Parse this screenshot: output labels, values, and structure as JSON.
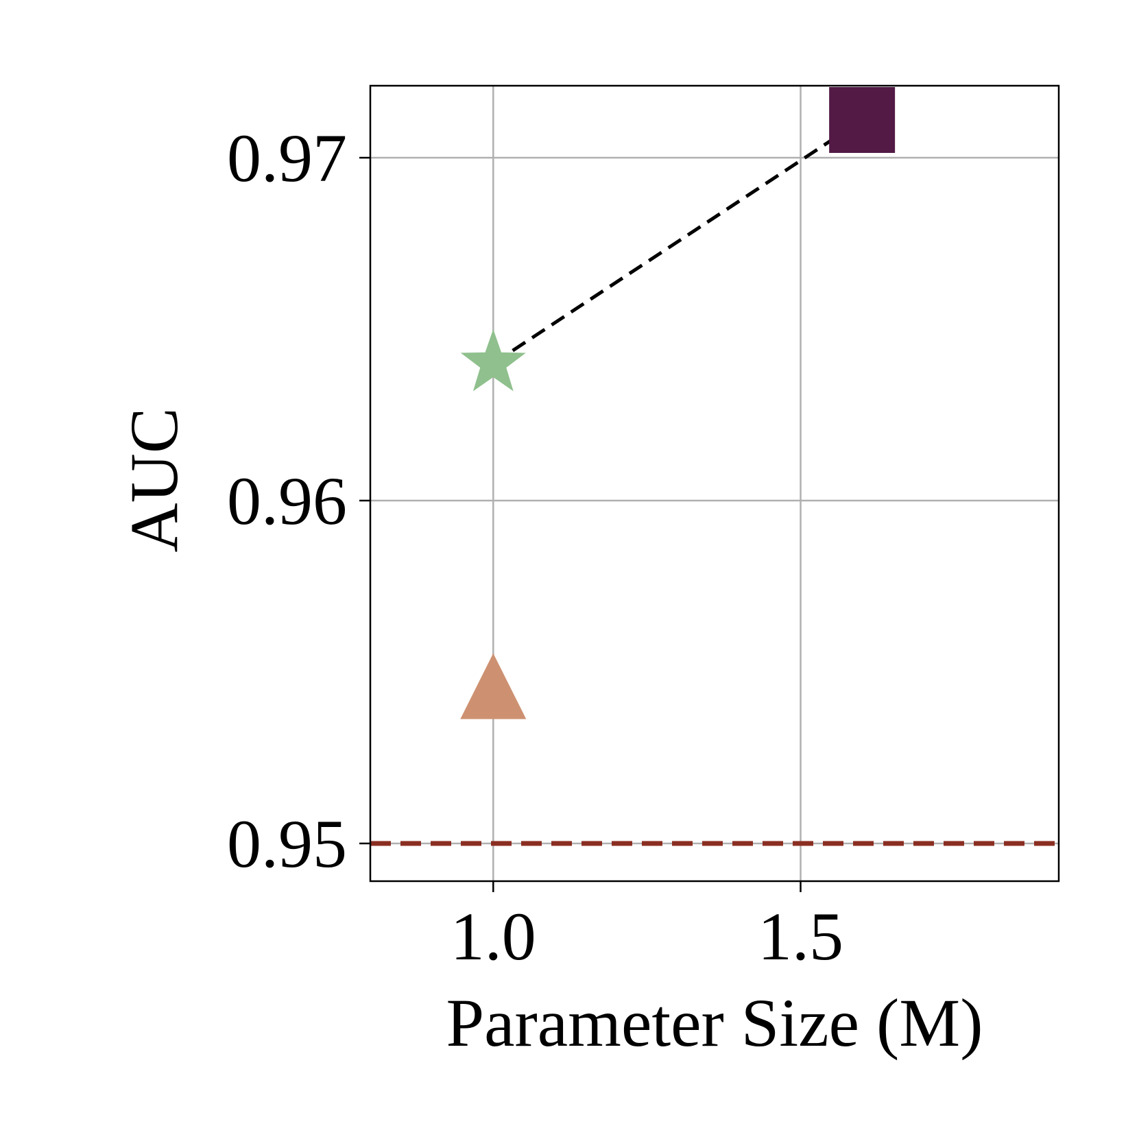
{
  "chart_data": {
    "type": "scatter",
    "xlabel": "Parameter Size (M)",
    "ylabel": "AUC",
    "xlim": [
      0.8,
      1.92
    ],
    "ylim": [
      0.9489,
      0.9721
    ],
    "xticks": [
      {
        "value": 1.0,
        "label": "1.0"
      },
      {
        "value": 1.5,
        "label": "1.5"
      }
    ],
    "yticks": [
      {
        "value": 0.95,
        "label": "0.95"
      },
      {
        "value": 0.96,
        "label": "0.96"
      },
      {
        "value": 0.97,
        "label": "0.97"
      }
    ],
    "grid": true,
    "legend": "none",
    "points": [
      {
        "x": 1.0,
        "y": 0.9543,
        "marker": "triangle",
        "color": "#cd9171"
      },
      {
        "x": 1.0,
        "y": 0.964,
        "marker": "star",
        "color": "#8fc08d"
      },
      {
        "x": 1.6,
        "y": 0.9711,
        "marker": "square",
        "color": "#521a45"
      }
    ],
    "trend_line": {
      "x": [
        1.0,
        1.6
      ],
      "y": [
        0.964,
        0.9711
      ],
      "color": "#000000",
      "style": "dashed"
    },
    "baseline": {
      "y": 0.95,
      "color": "#8b2e22",
      "style": "dashed"
    }
  }
}
